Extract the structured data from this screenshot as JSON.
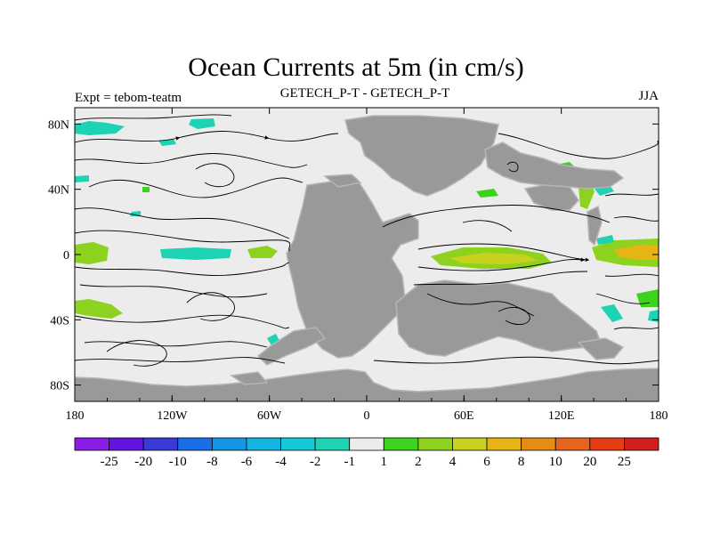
{
  "title": "Ocean Currents at 5m (in cm/s)",
  "experiment_label": "Expt = tebom-teatm",
  "subtitle": "GETECH_P-T - GETECH_P-T",
  "season": "JJA",
  "axes": {
    "x_ticks": [
      "180",
      "120W",
      "60W",
      "0",
      "60E",
      "120E",
      "180"
    ],
    "y_ticks": [
      "80N",
      "40N",
      "0",
      "40S",
      "80S"
    ],
    "x_range": [
      -180,
      180
    ],
    "y_range": [
      -90,
      90
    ]
  },
  "colorbar": {
    "labels": [
      "-25",
      "-20",
      "-10",
      "-8",
      "-6",
      "-4",
      "-2",
      "-1",
      "1",
      "2",
      "4",
      "6",
      "8",
      "10",
      "20",
      "25"
    ],
    "colors": [
      "#8a1ee6",
      "#6414e0",
      "#3a3ad8",
      "#1a6ee6",
      "#1496e6",
      "#14b4e0",
      "#14c8d8",
      "#1ed2b4",
      "#ececec",
      "#3cd21e",
      "#8cd21e",
      "#c8d21e",
      "#e6b414",
      "#e68c14",
      "#e6641e",
      "#e63c14",
      "#d21e1e"
    ]
  },
  "colors": {
    "land": "#999999",
    "ocean_background": "#ececec",
    "streamline": "#000000"
  }
}
